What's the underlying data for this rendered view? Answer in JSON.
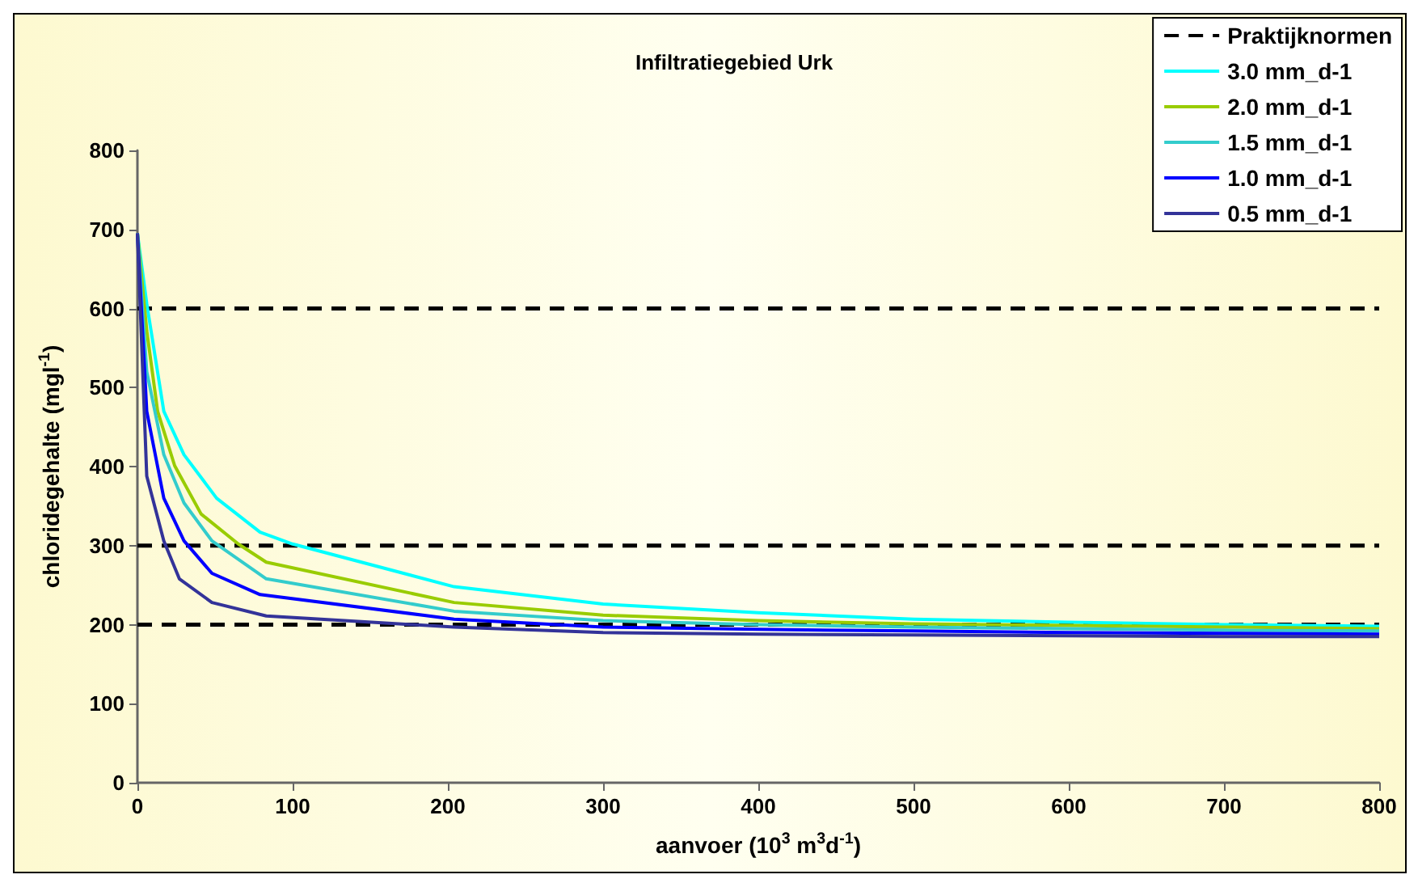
{
  "chart_data": {
    "type": "line",
    "title": "Infiltratiegebied Urk",
    "xlabel": "aanvoer (10$^{3}$ m$^{3}$d$^{-1}$)",
    "ylabel": "chloridegehalte (mgl$^{-1}$)",
    "xlim": [
      0,
      800
    ],
    "xticks": [
      0,
      100,
      200,
      300,
      400,
      500,
      600,
      700,
      800
    ],
    "ylim": [
      0,
      800
    ],
    "yticks": [
      0,
      100,
      200,
      300,
      400,
      500,
      600,
      700,
      800
    ],
    "grid": false,
    "legend": "top right",
    "marker": "none",
    "line_style": "solid",
    "series": [
      {
        "name": "Praktijknormen",
        "color": "#000000",
        "line_style": "dashed",
        "x": [
          0,
          800
        ],
        "values": [
          600,
          600
        ]
      },
      {
        "color": "#000000",
        "line_style": "dashed",
        "x": [
          0,
          800
        ],
        "values": [
          300,
          300
        ]
      },
      {
        "color": "#000000",
        "line_style": "dashed",
        "x": [
          0,
          800
        ],
        "values": [
          200,
          200
        ]
      },
      {
        "name": "3.0 mm_d-1",
        "color": "#00ffff",
        "x": [
          0,
          6,
          17,
          30,
          51,
          79,
          100,
          204,
          300,
          400,
          500,
          600,
          700,
          800
        ],
        "values": [
          695,
          606,
          470,
          415,
          360,
          317,
          302,
          248,
          226,
          215,
          207,
          203,
          200,
          198
        ]
      },
      {
        "name": "2.0 mm_d-1",
        "color": "#99cc00",
        "x": [
          0,
          6,
          13,
          24,
          41,
          65,
          83,
          204,
          300,
          400,
          500,
          600,
          700,
          800
        ],
        "values": [
          695,
          572,
          470,
          401,
          340,
          302,
          279,
          228,
          212,
          205,
          201,
          199,
          197,
          195
        ]
      },
      {
        "name": "1.5 mm_d-1",
        "color": "#33cccc",
        "x": [
          0,
          6,
          17,
          30,
          48,
          83,
          204,
          300,
          400,
          500,
          600,
          700,
          800
        ],
        "values": [
          695,
          520,
          415,
          354,
          306,
          258,
          217,
          205,
          200,
          197,
          195,
          193,
          192
        ]
      },
      {
        "name": "1.0 mm_d-1",
        "color": "#0000ff",
        "x": [
          0,
          6,
          17,
          30,
          48,
          79,
          204,
          300,
          400,
          500,
          600,
          700,
          800
        ],
        "values": [
          695,
          470,
          360,
          306,
          265,
          238,
          207,
          197,
          194,
          192,
          190,
          189,
          188
        ]
      },
      {
        "name": "0.5 mm_d-1",
        "color": "#333399",
        "x": [
          0,
          6,
          17,
          27,
          48,
          83,
          204,
          300,
          400,
          500,
          600,
          700,
          800
        ],
        "values": [
          695,
          388,
          306,
          258,
          228,
          211,
          197,
          190,
          188,
          187,
          186,
          185,
          185
        ]
      }
    ]
  }
}
